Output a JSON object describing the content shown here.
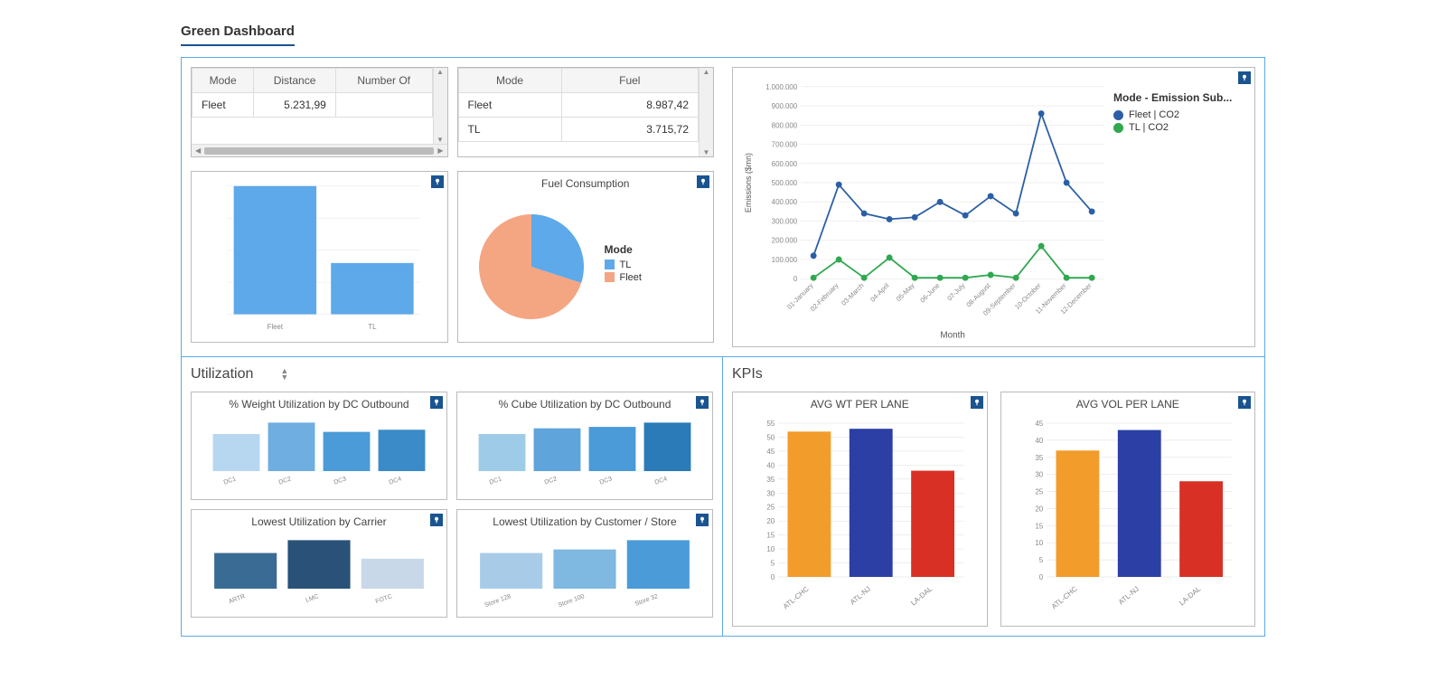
{
  "tab_title": "Green Dashboard",
  "top": {
    "mode_table": {
      "columns": [
        "Mode",
        "Distance",
        "Number Of"
      ],
      "rows": [
        [
          "Fleet",
          "5.231,99",
          ""
        ]
      ]
    },
    "fuel_table": {
      "columns": [
        "Mode",
        "Fuel"
      ],
      "rows": [
        [
          "Fleet",
          "8.987,42"
        ],
        [
          "TL",
          "3.715,72"
        ]
      ]
    },
    "mode_bar": {
      "type": "bar",
      "categories": [
        "Fleet",
        "TL"
      ],
      "values": [
        100,
        40
      ],
      "color": "#5da9e9",
      "bg": "#ffffff",
      "grid": "#e5e5e5",
      "label_fontsize": 8,
      "label_color": "#888888"
    },
    "fuel_pie": {
      "type": "pie",
      "title": "Fuel Consumption",
      "legend_title": "Mode",
      "slices": [
        {
          "label": "TL",
          "value": 30,
          "color": "#5da9e9"
        },
        {
          "label": "Fleet",
          "value": 70,
          "color": "#f4a582"
        }
      ]
    },
    "emissions_line": {
      "type": "line",
      "y_label": "Emissions ($mn)",
      "x_label": "Month",
      "legend_title": "Mode - Emission Sub...",
      "y_ticks": [
        0,
        100000,
        200000,
        300000,
        400000,
        500000,
        600000,
        700000,
        800000,
        900000,
        1000000
      ],
      "y_tick_labels": [
        "0",
        "100.000",
        "200.000",
        "300.000",
        "400.000",
        "500.000",
        "600.000",
        "700.000",
        "800.000",
        "900.000",
        "1.000.000"
      ],
      "x_labels": [
        "01-January",
        "02-February",
        "03-March",
        "04-April",
        "05-May",
        "06-June",
        "07-July",
        "08-August",
        "09-September",
        "10-October",
        "11-November",
        "12-December"
      ],
      "series": [
        {
          "name": "Fleet | CO2",
          "color": "#2b5fa5",
          "values": [
            120000,
            490000,
            340000,
            310000,
            320000,
            400000,
            330000,
            430000,
            340000,
            860000,
            500000,
            350000
          ]
        },
        {
          "name": "TL | CO2",
          "color": "#2fa84f",
          "values": [
            5000,
            100000,
            5000,
            110000,
            5000,
            5000,
            5000,
            20000,
            5000,
            170000,
            5000,
            5000
          ]
        }
      ],
      "grid_color": "#e0e0e0",
      "axis_color": "#888888",
      "label_fontsize": 9
    }
  },
  "utilization": {
    "title": "Utilization",
    "weight_by_dc": {
      "title": "% Weight Utilization by DC Outbound",
      "categories": [
        "DC1",
        "DC2",
        "DC3",
        "DC4"
      ],
      "values": [
        52,
        68,
        55,
        58
      ],
      "colors": [
        "#b7d7f0",
        "#6faee0",
        "#4a9bd8",
        "#3a8bc8"
      ],
      "label_fontsize": 7,
      "label_color": "#888888"
    },
    "cube_by_dc": {
      "title": "% Cube Utilization by DC Outbound",
      "categories": [
        "DC1",
        "DC2",
        "DC3",
        "DC4"
      ],
      "values": [
        52,
        60,
        62,
        68
      ],
      "colors": [
        "#9dcbe8",
        "#5fa4da",
        "#4a9bd8",
        "#2a7bb8"
      ],
      "label_fontsize": 7,
      "label_color": "#888888"
    },
    "lowest_by_carrier": {
      "title": "Lowest Utilization by Carrier",
      "categories": [
        "ARTR",
        "LMC",
        "FOTC"
      ],
      "values": [
        50,
        68,
        42
      ],
      "colors": [
        "#3a6b94",
        "#2a5278",
        "#c8d8e8"
      ],
      "label_fontsize": 7,
      "label_color": "#888888"
    },
    "lowest_by_customer": {
      "title": "Lowest Utilization by Customer / Store",
      "categories": [
        "Store 128",
        "Store 100",
        "Store 32"
      ],
      "values": [
        50,
        55,
        68
      ],
      "colors": [
        "#a8cce8",
        "#7fb8e0",
        "#4a9bd8"
      ],
      "label_fontsize": 7,
      "label_color": "#888888"
    }
  },
  "kpis": {
    "title": "KPIs",
    "avg_wt": {
      "title": "AVG WT PER LANE",
      "categories": [
        "ATL-CHC",
        "ATL-NJ",
        "LA-DAL"
      ],
      "values": [
        52,
        53,
        38
      ],
      "colors": [
        "#f29c2c",
        "#2b3fa5",
        "#d93025"
      ],
      "y_max": 55,
      "y_step": 5,
      "grid_color": "#dddddd",
      "axis_color": "#888888",
      "label_fontsize": 8
    },
    "avg_vol": {
      "title": "AVG VOL PER LANE",
      "categories": [
        "ATL-CHC",
        "ATL-NJ",
        "LA-DAL"
      ],
      "values": [
        37,
        43,
        28
      ],
      "colors": [
        "#f29c2c",
        "#2b3fa5",
        "#d93025"
      ],
      "y_max": 45,
      "y_step": 5,
      "grid_color": "#dddddd",
      "axis_color": "#888888",
      "label_fontsize": 8
    }
  }
}
